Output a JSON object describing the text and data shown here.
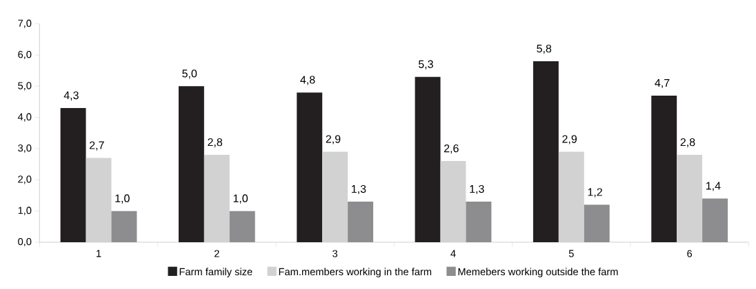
{
  "chart_data": {
    "type": "bar",
    "categories": [
      "1",
      "2",
      "3",
      "4",
      "5",
      "6"
    ],
    "series": [
      {
        "name": "Farm family size",
        "color": "#231f20",
        "values": [
          4.3,
          5.0,
          4.8,
          5.3,
          5.8,
          4.7
        ],
        "value_labels": [
          "4,3",
          "5,0",
          "4,8",
          "5,3",
          "5,8",
          "4,7"
        ]
      },
      {
        "name": "Fam.members working in the farm",
        "color": "#d2d2d2",
        "values": [
          2.7,
          2.8,
          2.9,
          2.6,
          2.9,
          2.8
        ],
        "value_labels": [
          "2,7",
          "2,8",
          "2,9",
          "2,6",
          "2,9",
          "2,8"
        ]
      },
      {
        "name": "Memebers working outside the farm",
        "color": "#8d8d8f",
        "values": [
          1.0,
          1.0,
          1.3,
          1.3,
          1.2,
          1.4
        ],
        "value_labels": [
          "1,0",
          "1,0",
          "1,3",
          "1,3",
          "1,2",
          "1,4"
        ]
      }
    ],
    "ylim": [
      0,
      7
    ],
    "yticks": [
      {
        "value": 0,
        "label": "0,0"
      },
      {
        "value": 1,
        "label": "1,0"
      },
      {
        "value": 2,
        "label": "2,0"
      },
      {
        "value": 3,
        "label": "3,0"
      },
      {
        "value": 4,
        "label": "4,0"
      },
      {
        "value": 5,
        "label": "5,0"
      },
      {
        "value": 6,
        "label": "6,0"
      },
      {
        "value": 7,
        "label": "7,0"
      }
    ],
    "legend": "bottom"
  }
}
